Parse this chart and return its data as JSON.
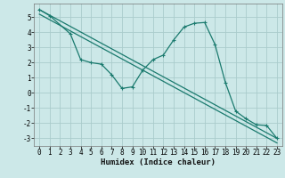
{
  "xlabel": "Humidex (Indice chaleur)",
  "bg_color": "#cce8e8",
  "grid_color": "#aacccc",
  "line_color": "#1a7a6e",
  "xlim": [
    -0.5,
    23.5
  ],
  "ylim": [
    -3.5,
    5.9
  ],
  "yticks": [
    -3,
    -2,
    -1,
    0,
    1,
    2,
    3,
    4,
    5
  ],
  "xticks": [
    0,
    1,
    2,
    3,
    4,
    5,
    6,
    7,
    8,
    9,
    10,
    11,
    12,
    13,
    14,
    15,
    16,
    17,
    18,
    19,
    20,
    21,
    22,
    23
  ],
  "line1_x": [
    0,
    1,
    3,
    4,
    5,
    6,
    7,
    8,
    9,
    10,
    11,
    12,
    13,
    14,
    15,
    16,
    17,
    18,
    19,
    20,
    21,
    22,
    23
  ],
  "line1_y": [
    5.5,
    5.1,
    3.9,
    2.2,
    2.0,
    1.9,
    1.2,
    0.3,
    0.4,
    1.5,
    2.2,
    2.5,
    3.5,
    4.35,
    4.6,
    4.65,
    3.2,
    0.7,
    -1.2,
    -1.7,
    -2.1,
    -2.15,
    -3.0
  ],
  "line2_x": [
    0,
    23
  ],
  "line2_y": [
    5.5,
    -3.0
  ],
  "line3_x": [
    0,
    23
  ],
  "line3_y": [
    5.2,
    -3.3
  ],
  "tick_fontsize": 5.5,
  "xlabel_fontsize": 6.5
}
